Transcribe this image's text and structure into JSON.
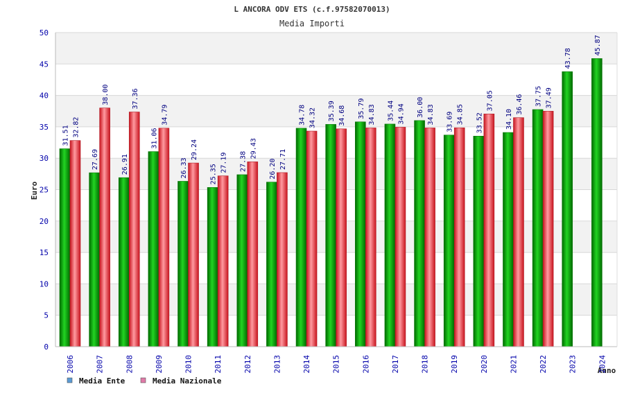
{
  "chart_data": {
    "type": "bar",
    "title": "L ANCORA ODV ETS (c.f.97582070013)",
    "subtitle": "Media Importi",
    "ylabel": "Euro",
    "xlabel": "Anno",
    "ylim": [
      0,
      50
    ],
    "yticks": [
      0,
      5,
      10,
      15,
      20,
      25,
      30,
      35,
      40,
      45,
      50
    ],
    "categories": [
      "2006",
      "2007",
      "2008",
      "2009",
      "2010",
      "2011",
      "2012",
      "2013",
      "2014",
      "2015",
      "2016",
      "2017",
      "2018",
      "2019",
      "2020",
      "2021",
      "2022",
      "2023",
      "2024"
    ],
    "series": [
      {
        "name": "Media Ente",
        "color": "#0fa40f",
        "legend_color": "#5b9bd5",
        "values": [
          31.51,
          27.69,
          26.91,
          31.06,
          26.33,
          25.35,
          27.38,
          26.2,
          34.78,
          35.39,
          35.79,
          35.44,
          36.0,
          33.69,
          33.52,
          34.1,
          37.75,
          43.78,
          45.87
        ],
        "labels": [
          "31.51",
          "27.69",
          "26.91",
          "31.06",
          "26.33",
          "25.35",
          "27.38",
          "26.20",
          "34.78",
          "35.39",
          "35.79",
          "35.44",
          "36.00",
          "33.69",
          "33.52",
          "34.10",
          "37.75",
          "43.78",
          "45.87"
        ]
      },
      {
        "name": "Media Nazionale",
        "color": "#e0303c",
        "legend_color": "#e07aa8",
        "values": [
          32.82,
          38.0,
          37.36,
          34.79,
          29.24,
          27.19,
          29.43,
          27.71,
          34.32,
          34.68,
          34.83,
          34.94,
          34.83,
          34.85,
          37.05,
          36.46,
          37.49,
          null,
          null
        ],
        "labels": [
          "32.82",
          "38.00",
          "37.36",
          "34.79",
          "29.24",
          "27.19",
          "29.43",
          "27.71",
          "34.32",
          "34.68",
          "34.83",
          "34.94",
          "34.83",
          "34.85",
          "37.05",
          "36.46",
          "37.49",
          null,
          null
        ]
      }
    ],
    "grid": true,
    "legend_position": "bottom-left",
    "colors": {
      "axis_text": "#0000aa",
      "value_text": "#000080",
      "grid_band": "#f2f2f2",
      "grid_line": "#d8d8d8"
    }
  }
}
